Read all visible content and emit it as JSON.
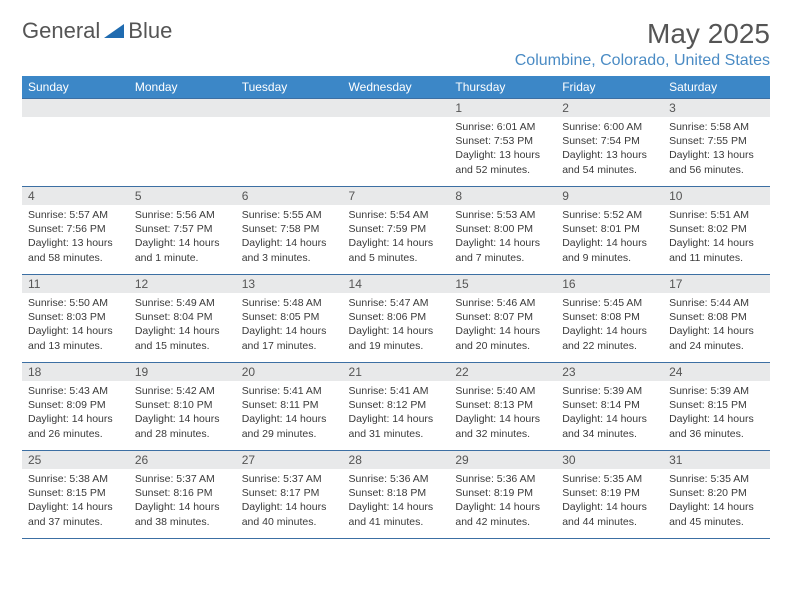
{
  "brand": {
    "word1": "General",
    "word2": "Blue"
  },
  "title": {
    "month_year": "May 2025",
    "location": "Columbine, Colorado, United States"
  },
  "colors": {
    "header_bg": "#3c87c7",
    "header_text": "#ffffff",
    "daynum_bg": "#e8e9ea",
    "grid_border": "#3c6fa3",
    "location_text": "#4a8bc4",
    "logo_triangle": "#1f6bb0"
  },
  "day_headers": [
    "Sunday",
    "Monday",
    "Tuesday",
    "Wednesday",
    "Thursday",
    "Friday",
    "Saturday"
  ],
  "weeks": [
    [
      null,
      null,
      null,
      null,
      {
        "n": "1",
        "sr": "Sunrise: 6:01 AM",
        "ss": "Sunset: 7:53 PM",
        "dl1": "Daylight: 13 hours",
        "dl2": "and 52 minutes."
      },
      {
        "n": "2",
        "sr": "Sunrise: 6:00 AM",
        "ss": "Sunset: 7:54 PM",
        "dl1": "Daylight: 13 hours",
        "dl2": "and 54 minutes."
      },
      {
        "n": "3",
        "sr": "Sunrise: 5:58 AM",
        "ss": "Sunset: 7:55 PM",
        "dl1": "Daylight: 13 hours",
        "dl2": "and 56 minutes."
      }
    ],
    [
      {
        "n": "4",
        "sr": "Sunrise: 5:57 AM",
        "ss": "Sunset: 7:56 PM",
        "dl1": "Daylight: 13 hours",
        "dl2": "and 58 minutes."
      },
      {
        "n": "5",
        "sr": "Sunrise: 5:56 AM",
        "ss": "Sunset: 7:57 PM",
        "dl1": "Daylight: 14 hours",
        "dl2": "and 1 minute."
      },
      {
        "n": "6",
        "sr": "Sunrise: 5:55 AM",
        "ss": "Sunset: 7:58 PM",
        "dl1": "Daylight: 14 hours",
        "dl2": "and 3 minutes."
      },
      {
        "n": "7",
        "sr": "Sunrise: 5:54 AM",
        "ss": "Sunset: 7:59 PM",
        "dl1": "Daylight: 14 hours",
        "dl2": "and 5 minutes."
      },
      {
        "n": "8",
        "sr": "Sunrise: 5:53 AM",
        "ss": "Sunset: 8:00 PM",
        "dl1": "Daylight: 14 hours",
        "dl2": "and 7 minutes."
      },
      {
        "n": "9",
        "sr": "Sunrise: 5:52 AM",
        "ss": "Sunset: 8:01 PM",
        "dl1": "Daylight: 14 hours",
        "dl2": "and 9 minutes."
      },
      {
        "n": "10",
        "sr": "Sunrise: 5:51 AM",
        "ss": "Sunset: 8:02 PM",
        "dl1": "Daylight: 14 hours",
        "dl2": "and 11 minutes."
      }
    ],
    [
      {
        "n": "11",
        "sr": "Sunrise: 5:50 AM",
        "ss": "Sunset: 8:03 PM",
        "dl1": "Daylight: 14 hours",
        "dl2": "and 13 minutes."
      },
      {
        "n": "12",
        "sr": "Sunrise: 5:49 AM",
        "ss": "Sunset: 8:04 PM",
        "dl1": "Daylight: 14 hours",
        "dl2": "and 15 minutes."
      },
      {
        "n": "13",
        "sr": "Sunrise: 5:48 AM",
        "ss": "Sunset: 8:05 PM",
        "dl1": "Daylight: 14 hours",
        "dl2": "and 17 minutes."
      },
      {
        "n": "14",
        "sr": "Sunrise: 5:47 AM",
        "ss": "Sunset: 8:06 PM",
        "dl1": "Daylight: 14 hours",
        "dl2": "and 19 minutes."
      },
      {
        "n": "15",
        "sr": "Sunrise: 5:46 AM",
        "ss": "Sunset: 8:07 PM",
        "dl1": "Daylight: 14 hours",
        "dl2": "and 20 minutes."
      },
      {
        "n": "16",
        "sr": "Sunrise: 5:45 AM",
        "ss": "Sunset: 8:08 PM",
        "dl1": "Daylight: 14 hours",
        "dl2": "and 22 minutes."
      },
      {
        "n": "17",
        "sr": "Sunrise: 5:44 AM",
        "ss": "Sunset: 8:08 PM",
        "dl1": "Daylight: 14 hours",
        "dl2": "and 24 minutes."
      }
    ],
    [
      {
        "n": "18",
        "sr": "Sunrise: 5:43 AM",
        "ss": "Sunset: 8:09 PM",
        "dl1": "Daylight: 14 hours",
        "dl2": "and 26 minutes."
      },
      {
        "n": "19",
        "sr": "Sunrise: 5:42 AM",
        "ss": "Sunset: 8:10 PM",
        "dl1": "Daylight: 14 hours",
        "dl2": "and 28 minutes."
      },
      {
        "n": "20",
        "sr": "Sunrise: 5:41 AM",
        "ss": "Sunset: 8:11 PM",
        "dl1": "Daylight: 14 hours",
        "dl2": "and 29 minutes."
      },
      {
        "n": "21",
        "sr": "Sunrise: 5:41 AM",
        "ss": "Sunset: 8:12 PM",
        "dl1": "Daylight: 14 hours",
        "dl2": "and 31 minutes."
      },
      {
        "n": "22",
        "sr": "Sunrise: 5:40 AM",
        "ss": "Sunset: 8:13 PM",
        "dl1": "Daylight: 14 hours",
        "dl2": "and 32 minutes."
      },
      {
        "n": "23",
        "sr": "Sunrise: 5:39 AM",
        "ss": "Sunset: 8:14 PM",
        "dl1": "Daylight: 14 hours",
        "dl2": "and 34 minutes."
      },
      {
        "n": "24",
        "sr": "Sunrise: 5:39 AM",
        "ss": "Sunset: 8:15 PM",
        "dl1": "Daylight: 14 hours",
        "dl2": "and 36 minutes."
      }
    ],
    [
      {
        "n": "25",
        "sr": "Sunrise: 5:38 AM",
        "ss": "Sunset: 8:15 PM",
        "dl1": "Daylight: 14 hours",
        "dl2": "and 37 minutes."
      },
      {
        "n": "26",
        "sr": "Sunrise: 5:37 AM",
        "ss": "Sunset: 8:16 PM",
        "dl1": "Daylight: 14 hours",
        "dl2": "and 38 minutes."
      },
      {
        "n": "27",
        "sr": "Sunrise: 5:37 AM",
        "ss": "Sunset: 8:17 PM",
        "dl1": "Daylight: 14 hours",
        "dl2": "and 40 minutes."
      },
      {
        "n": "28",
        "sr": "Sunrise: 5:36 AM",
        "ss": "Sunset: 8:18 PM",
        "dl1": "Daylight: 14 hours",
        "dl2": "and 41 minutes."
      },
      {
        "n": "29",
        "sr": "Sunrise: 5:36 AM",
        "ss": "Sunset: 8:19 PM",
        "dl1": "Daylight: 14 hours",
        "dl2": "and 42 minutes."
      },
      {
        "n": "30",
        "sr": "Sunrise: 5:35 AM",
        "ss": "Sunset: 8:19 PM",
        "dl1": "Daylight: 14 hours",
        "dl2": "and 44 minutes."
      },
      {
        "n": "31",
        "sr": "Sunrise: 5:35 AM",
        "ss": "Sunset: 8:20 PM",
        "dl1": "Daylight: 14 hours",
        "dl2": "and 45 minutes."
      }
    ]
  ]
}
